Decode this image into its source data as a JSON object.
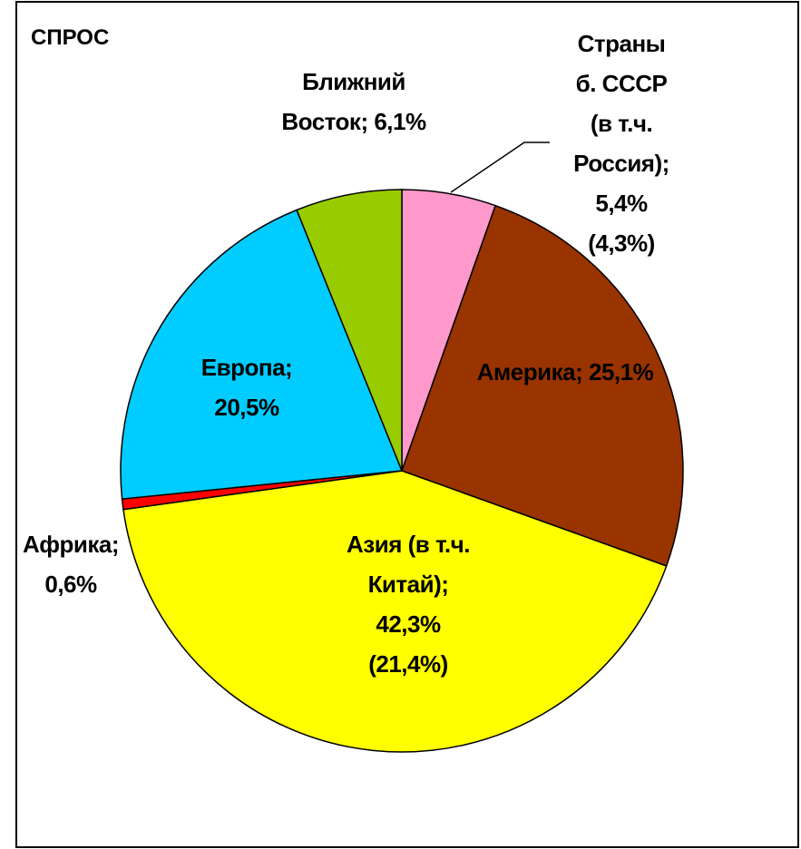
{
  "chart_data": {
    "type": "pie",
    "title": "СПРОС",
    "categories": [
      "Страны б. СССР (в т.ч. Россия)",
      "Америка",
      "Азия (в т.ч. Китай)",
      "Африка",
      "Европа",
      "Ближний Восток"
    ],
    "label_separator": ";",
    "values": [
      5.4,
      25.1,
      42.3,
      0.6,
      20.5,
      6.1
    ],
    "value_labels": [
      "5,4%",
      "25,1%",
      "42,3%",
      "0,6%",
      "20,5%",
      "6,1%"
    ],
    "sub_values": [
      4.3,
      null,
      21.4,
      null,
      null,
      null
    ],
    "sub_value_labels": [
      "(4,3%)",
      null,
      "(21,4%)",
      null,
      null,
      null
    ],
    "colors": [
      "#ff99cc",
      "#993300",
      "#ffff00",
      "#ff0000",
      "#00ccff",
      "#99cc00"
    ]
  }
}
